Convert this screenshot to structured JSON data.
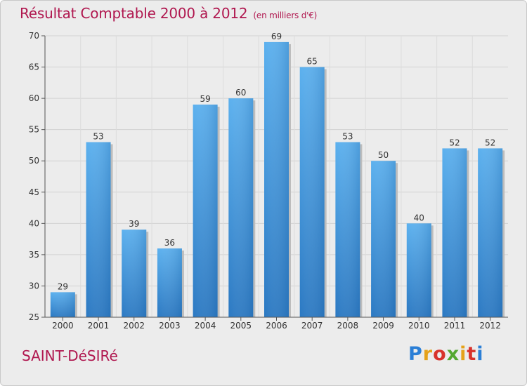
{
  "chart_data": {
    "type": "bar",
    "title": "Résultat Comptable 2000 à 2012",
    "subtitle": "(en milliers d'€)",
    "categories": [
      "2000",
      "2001",
      "2002",
      "2003",
      "2004",
      "2005",
      "2006",
      "2007",
      "2008",
      "2009",
      "2010",
      "2011",
      "2012"
    ],
    "values": [
      29,
      53,
      39,
      36,
      59,
      60,
      69,
      65,
      53,
      50,
      40,
      52,
      52
    ],
    "ylim": [
      25,
      70
    ],
    "yticks": [
      25,
      30,
      35,
      40,
      45,
      50,
      55,
      60,
      65,
      70
    ],
    "xlabel": "",
    "ylabel": "",
    "grid": true,
    "bar_color": "#3a8fd6"
  },
  "footer": {
    "commune": "SAINT-DéSIRé",
    "logo": "Proxiti",
    "logo_colors": [
      "#2b7fd6",
      "#e5a21a",
      "#d8322b",
      "#55a830",
      "#e5a21a",
      "#d8322b",
      "#2b7fd6"
    ]
  }
}
